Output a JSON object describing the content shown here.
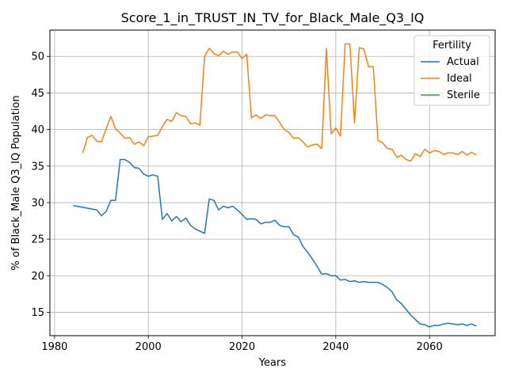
{
  "chart_data": {
    "type": "line",
    "title": "Score_1_in_TRUST_IN_TV_for_Black_Male_Q3_IQ",
    "xlabel": "Years",
    "ylabel": "% of Black_Male Q3_IQ Population",
    "xlim": [
      1979,
      2074
    ],
    "ylim": [
      11.8,
      53.6
    ],
    "xticks": [
      1980,
      2000,
      2020,
      2040,
      2060
    ],
    "yticks": [
      15,
      20,
      25,
      30,
      35,
      40,
      45,
      50
    ],
    "grid": true,
    "legend": {
      "title": "Fertility",
      "placement": "top-right"
    },
    "colors": {
      "Actual": "#1f77b4",
      "Ideal": "#ff7f0e",
      "Sterile": "#2ca02c"
    },
    "series": [
      {
        "name": "Actual",
        "x": [
          1984,
          1989,
          1990,
          1991,
          1992,
          1993,
          1994,
          1995,
          1996,
          1997,
          1998,
          1999,
          2000,
          2001,
          2002,
          2003,
          2004,
          2005,
          2006,
          2007,
          2008,
          2009,
          2010,
          2011,
          2012,
          2013,
          2014,
          2015,
          2016,
          2017,
          2018,
          2019,
          2020,
          2021,
          2022,
          2023,
          2024,
          2025,
          2026,
          2027,
          2028,
          2029,
          2030,
          2031,
          2032,
          2033,
          2034,
          2035,
          2036,
          2037,
          2038,
          2039,
          2040,
          2041,
          2042,
          2043,
          2044,
          2045,
          2046,
          2047,
          2048,
          2049,
          2050,
          2051,
          2052,
          2053,
          2054,
          2055,
          2056,
          2057,
          2058,
          2059,
          2060,
          2061,
          2062,
          2063,
          2064,
          2065,
          2066,
          2067,
          2068,
          2069,
          2070
        ],
        "values": [
          29.6,
          29.0,
          28.2,
          28.8,
          30.3,
          30.3,
          35.9,
          35.9,
          35.5,
          34.8,
          34.7,
          33.9,
          33.6,
          33.8,
          33.6,
          27.7,
          28.5,
          27.5,
          28.1,
          27.4,
          27.9,
          26.9,
          26.4,
          26.1,
          25.8,
          30.5,
          30.3,
          29.0,
          29.5,
          29.3,
          29.5,
          29.0,
          28.4,
          27.7,
          27.8,
          27.7,
          27.1,
          27.3,
          27.3,
          27.6,
          26.9,
          26.7,
          26.7,
          25.6,
          25.3,
          24.0,
          23.2,
          22.3,
          21.3,
          20.2,
          20.3,
          20.0,
          20.0,
          19.4,
          19.5,
          19.2,
          19.3,
          19.1,
          19.2,
          19.1,
          19.1,
          19.1,
          18.8,
          18.4,
          17.8,
          16.7,
          16.2,
          15.4,
          14.6,
          14.0,
          13.4,
          13.3,
          13.0,
          13.2,
          13.2,
          13.4,
          13.5,
          13.4,
          13.3,
          13.4,
          13.2,
          13.4,
          13.1
        ]
      },
      {
        "name": "Ideal",
        "x": [
          1986,
          1987,
          1988,
          1989,
          1990,
          1991,
          1992,
          1993,
          1994,
          1995,
          1996,
          1997,
          1998,
          1999,
          2000,
          2001,
          2002,
          2003,
          2004,
          2005,
          2006,
          2007,
          2008,
          2009,
          2010,
          2011,
          2012,
          2013,
          2014,
          2015,
          2016,
          2017,
          2018,
          2019,
          2020,
          2021,
          2022,
          2023,
          2024,
          2025,
          2026,
          2027,
          2028,
          2029,
          2030,
          2031,
          2032,
          2033,
          2034,
          2035,
          2036,
          2037,
          2038,
          2039,
          2040,
          2041,
          2042,
          2043,
          2044,
          2045,
          2046,
          2047,
          2048,
          2049,
          2050,
          2051,
          2052,
          2053,
          2054,
          2055,
          2056,
          2057,
          2058,
          2059,
          2060,
          2061,
          2062,
          2063,
          2064,
          2065,
          2066,
          2067,
          2068,
          2069,
          2070
        ],
        "values": [
          36.8,
          38.9,
          39.2,
          38.4,
          38.3,
          40.1,
          41.8,
          40.1,
          39.5,
          38.8,
          38.9,
          38.0,
          38.3,
          37.8,
          39.0,
          39.1,
          39.2,
          40.4,
          41.4,
          41.1,
          42.3,
          41.9,
          41.8,
          40.8,
          40.9,
          40.6,
          50.0,
          51.1,
          50.4,
          50.1,
          50.7,
          50.3,
          50.6,
          50.6,
          49.7,
          50.3,
          41.6,
          42.0,
          41.5,
          42.0,
          41.9,
          41.9,
          41.0,
          40.0,
          39.6,
          38.8,
          38.9,
          38.3,
          37.6,
          37.9,
          38.0,
          37.4,
          51.1,
          39.4,
          40.2,
          39.1,
          51.7,
          51.7,
          40.9,
          51.2,
          51.0,
          48.6,
          48.6,
          38.5,
          38.2,
          37.4,
          37.3,
          36.2,
          36.5,
          35.9,
          35.7,
          36.7,
          36.3,
          37.3,
          36.8,
          37.1,
          37.0,
          36.6,
          36.8,
          36.8,
          36.6,
          37.0,
          36.5,
          36.9,
          36.5
        ]
      },
      {
        "name": "Sterile",
        "x": [],
        "values": []
      }
    ]
  }
}
